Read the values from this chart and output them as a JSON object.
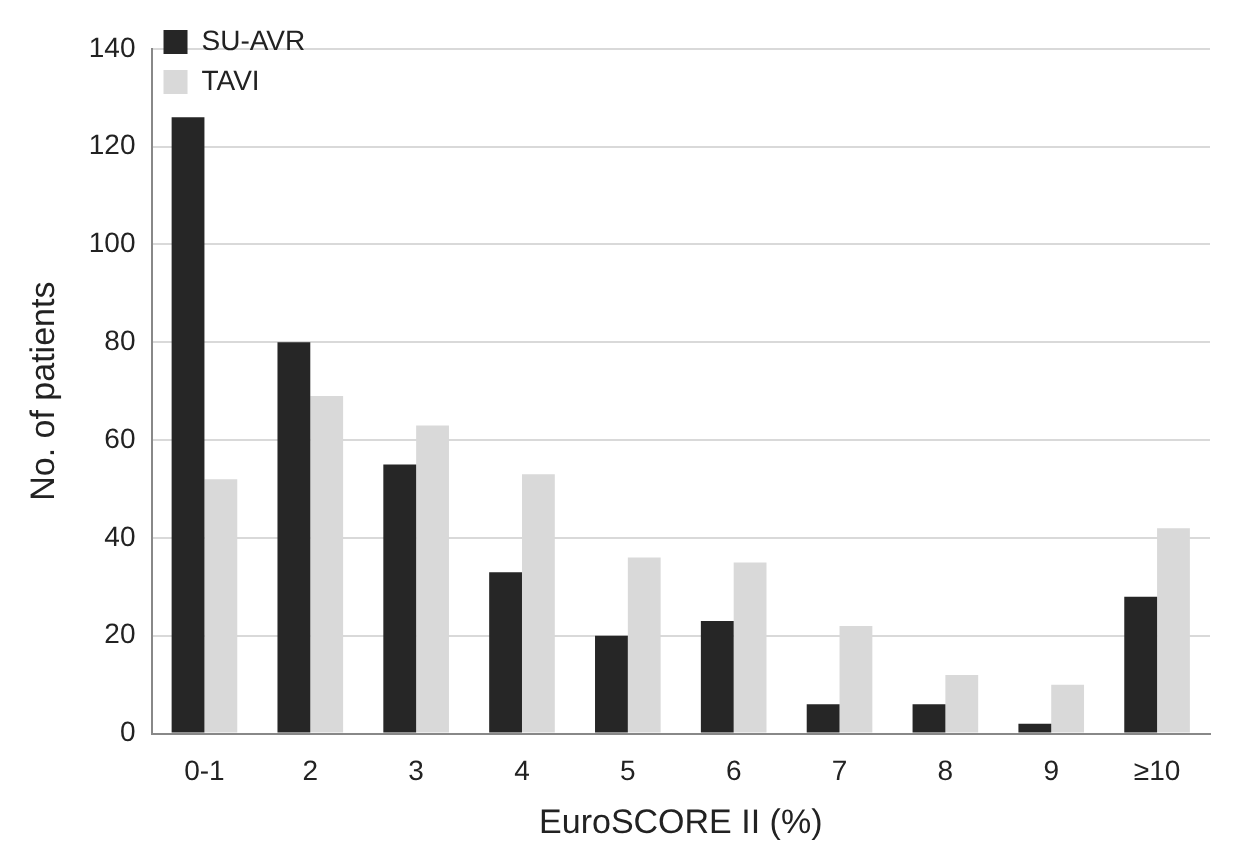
{
  "chart_data": {
    "type": "bar",
    "xlabel": "EuroSCORE II (%)",
    "ylabel": "No. of patients",
    "categories": [
      "0-1",
      "2",
      "3",
      "4",
      "5",
      "6",
      "7",
      "8",
      "9",
      "≥10"
    ],
    "series": [
      {
        "name": "SU-AVR",
        "color": "#262626",
        "values": [
          126,
          80,
          55,
          33,
          20,
          23,
          6,
          6,
          2,
          28
        ]
      },
      {
        "name": "TAVI",
        "color": "#d9d9d9",
        "values": [
          52,
          69,
          63,
          53,
          36,
          35,
          22,
          12,
          10,
          42
        ]
      }
    ],
    "ylim": [
      0,
      140
    ],
    "yticks": [
      0,
      20,
      40,
      60,
      80,
      100,
      120,
      140
    ],
    "grid": "y",
    "legend": "top left"
  }
}
